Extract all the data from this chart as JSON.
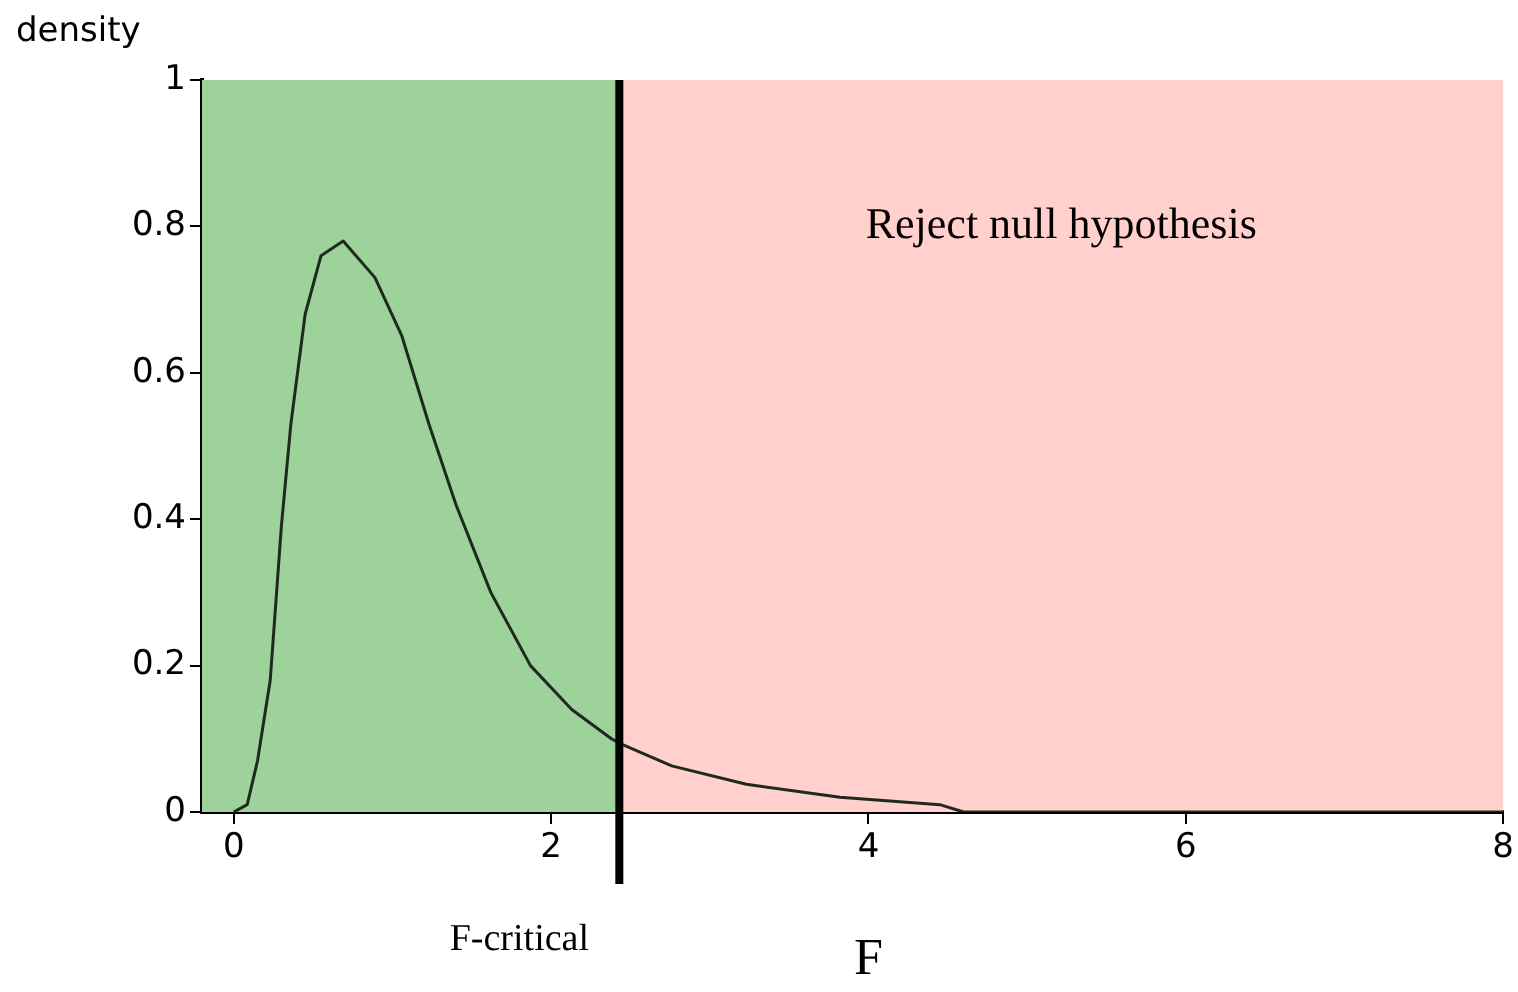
{
  "chart_data": {
    "type": "line",
    "xlabel": "F",
    "ylabel": "density",
    "x": [
      0,
      0.085,
      0.15,
      0.23,
      0.3,
      0.36,
      0.45,
      0.55,
      0.69,
      0.89,
      1.06,
      1.23,
      1.4,
      1.62,
      1.87,
      2.13,
      2.38,
      2.44,
      2.76,
      3.23,
      3.82,
      4.45,
      4.6,
      6,
      8
    ],
    "series": [
      {
        "color": "#1f2a1f",
        "values": [
          0,
          0.01,
          0.07,
          0.18,
          0.39,
          0.53,
          0.68,
          0.76,
          0.78,
          0.73,
          0.65,
          0.53,
          0.42,
          0.3,
          0.2,
          0.14,
          0.1,
          0.093,
          0.063,
          0.038,
          0.02,
          0.01,
          0,
          0,
          0
        ]
      }
    ],
    "xlim": [
      -0.2,
      8
    ],
    "xticks": [
      0,
      2,
      4,
      6,
      8
    ],
    "ylim": [
      0,
      1
    ],
    "yticks": [
      0,
      0.2,
      0.4,
      0.6,
      0.8,
      1
    ],
    "grid": false,
    "legend": false,
    "marker": "none",
    "line_style": "solid",
    "bands": [
      {
        "axis": "x",
        "from": -0.2,
        "to": 2.43,
        "color": "#9dd39b"
      },
      {
        "axis": "x",
        "from": 2.43,
        "to": 8,
        "color": "#ffd0cc",
        "label": "Reject null hypothesis"
      }
    ],
    "ref_lines": [
      {
        "axis": "x",
        "value": 2.43,
        "label": "F-critical",
        "color": "#000000"
      }
    ]
  }
}
